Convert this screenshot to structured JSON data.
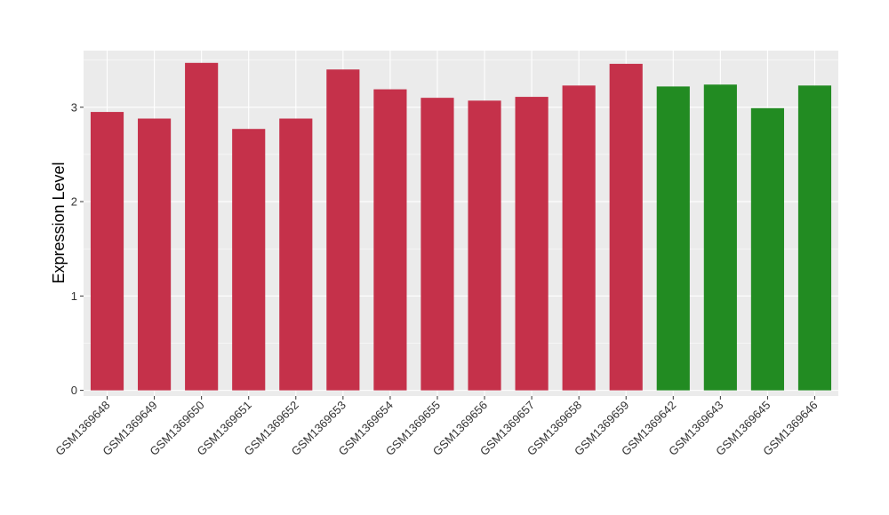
{
  "chart_data": {
    "type": "bar",
    "title": "",
    "xlabel": "",
    "ylabel": "Expression Level",
    "ylim": [
      -0.06,
      3.6
    ],
    "yticks": [
      0,
      1,
      2,
      3
    ],
    "grid": true,
    "legend": "none",
    "colors": {
      "group1": "#C5314A",
      "group2": "#228B22",
      "panel": "#EBEBEB",
      "gridline": "#FFFFFF"
    },
    "categories": [
      "GSM1369648",
      "GSM1369649",
      "GSM1369650",
      "GSM1369651",
      "GSM1369652",
      "GSM1369653",
      "GSM1369654",
      "GSM1369655",
      "GSM1369656",
      "GSM1369657",
      "GSM1369658",
      "GSM1369659",
      "GSM1369642",
      "GSM1369643",
      "GSM1369645",
      "GSM1369646"
    ],
    "values": [
      2.95,
      2.88,
      3.47,
      2.77,
      2.88,
      3.4,
      3.19,
      3.1,
      3.07,
      3.11,
      3.23,
      3.46,
      3.22,
      3.24,
      2.99,
      3.23
    ],
    "groups": [
      1,
      1,
      1,
      1,
      1,
      1,
      1,
      1,
      1,
      1,
      1,
      1,
      2,
      2,
      2,
      2
    ]
  }
}
